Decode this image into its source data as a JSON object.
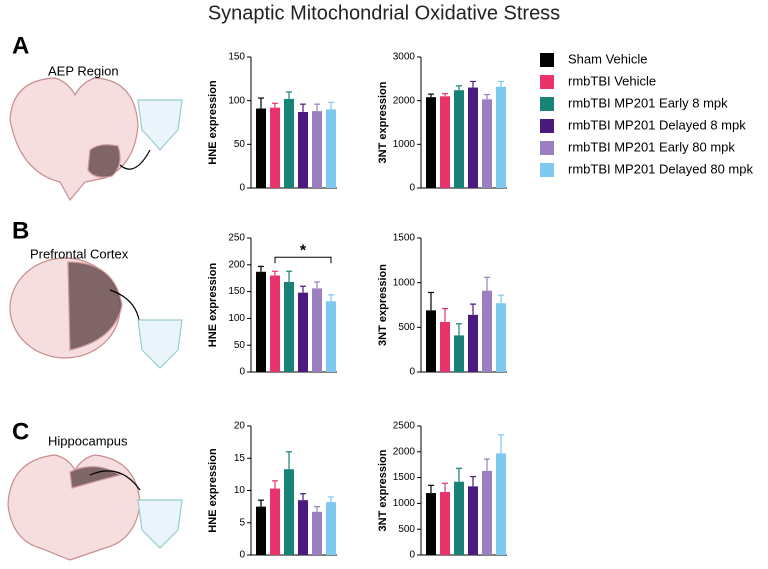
{
  "title": "Synaptic Mitochondrial Oxidative Stress",
  "legend": [
    {
      "name": "Sham Vehicle",
      "color": "#000000"
    },
    {
      "name": "rmbTBI Vehicle",
      "color": "#e8336b"
    },
    {
      "name": "rmbTBI MP201 Early 8 mpk",
      "color": "#178377"
    },
    {
      "name": "rmbTBI MP201 Delayed 8 mpk",
      "color": "#4a1a80"
    },
    {
      "name": "rmbTBI MP201 Early 80 mpk",
      "color": "#9a7fc1"
    },
    {
      "name": "rmbTBI MP201 Delayed 80 mpk",
      "color": "#7fc8f0"
    }
  ],
  "panels": [
    {
      "label": "A",
      "region": "AEP Region"
    },
    {
      "label": "B",
      "region": "Prefrontal Cortex"
    },
    {
      "label": "C",
      "region": "Hippocampus"
    }
  ],
  "chart_data": [
    {
      "type": "bar",
      "ylabel": "HNE expression",
      "ylim": [
        0,
        150
      ],
      "yticks": [
        0,
        50,
        100,
        150
      ],
      "values": [
        91,
        92,
        102,
        87,
        88,
        90
      ],
      "errors": [
        12,
        5,
        8,
        9,
        8,
        8
      ]
    },
    {
      "type": "bar",
      "ylabel": "3NT expression",
      "ylim": [
        0,
        3000
      ],
      "yticks": [
        0,
        1000,
        2000,
        3000
      ],
      "values": [
        2080,
        2100,
        2240,
        2300,
        2030,
        2320
      ],
      "errors": [
        70,
        60,
        100,
        140,
        110,
        120
      ]
    },
    {
      "type": "bar",
      "ylabel": "HNE expression",
      "ylim": [
        0,
        250
      ],
      "yticks": [
        0,
        50,
        100,
        150,
        200,
        250
      ],
      "values": [
        187,
        180,
        168,
        148,
        156,
        132
      ],
      "errors": [
        10,
        8,
        20,
        12,
        12,
        12
      ],
      "bracket": {
        "text": "*",
        "between": [
          1,
          5
        ]
      }
    },
    {
      "type": "bar",
      "ylabel": "3NT expression",
      "ylim": [
        0,
        1500
      ],
      "yticks": [
        0,
        500,
        1000,
        1500
      ],
      "values": [
        690,
        560,
        410,
        640,
        910,
        770
      ],
      "errors": [
        200,
        150,
        130,
        120,
        150,
        90
      ]
    },
    {
      "type": "bar",
      "ylabel": "HNE expression",
      "ylim": [
        0,
        20
      ],
      "yticks": [
        0,
        5,
        10,
        15,
        20
      ],
      "values": [
        7.5,
        10.3,
        13.3,
        8.5,
        6.7,
        8.2
      ],
      "errors": [
        1,
        1.2,
        2.7,
        1,
        0.8,
        0.8
      ]
    },
    {
      "type": "bar",
      "ylabel": "3NT expression",
      "ylim": [
        0,
        2500
      ],
      "yticks": [
        0,
        500,
        1000,
        1500,
        2000,
        2500
      ],
      "values": [
        1200,
        1220,
        1420,
        1330,
        1630,
        1970
      ],
      "errors": [
        150,
        170,
        260,
        190,
        230,
        360
      ]
    }
  ]
}
